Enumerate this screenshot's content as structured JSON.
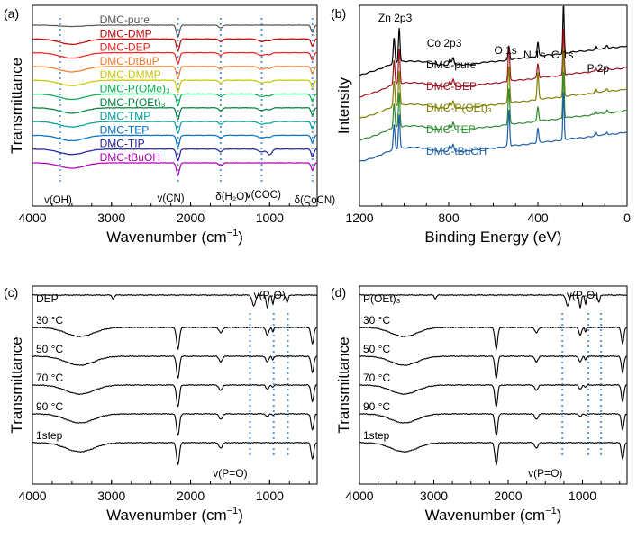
{
  "chart_data": [
    {
      "type": "line",
      "panel_label": "(a)",
      "xlabel": "Wavenumber (cm⁻¹)",
      "ylabel": "Transmittance",
      "xlim": [
        4000,
        400
      ],
      "xticks": [
        "4000",
        "3000",
        "2000",
        "1000"
      ],
      "reference_lines": [
        3650,
        2160,
        1620,
        1100,
        460
      ],
      "annotations": [
        "v(OH)",
        "v(CN)",
        "δ(H₂O)",
        "v(COC)",
        "δ(CoCN)"
      ],
      "series": [
        {
          "name": "DMC-pure",
          "color": "#555555"
        },
        {
          "name": "DMC-DMP",
          "color": "#c00000"
        },
        {
          "name": "DMC-DEP",
          "color": "#e8231f"
        },
        {
          "name": "DMC-DtBuP",
          "color": "#ed7d31"
        },
        {
          "name": "DMC-DMMP",
          "color": "#c8c800"
        },
        {
          "name": "DMC-P(OMe)₃",
          "color": "#00b050"
        },
        {
          "name": "DMC-P(OEt)₃",
          "color": "#00803a"
        },
        {
          "name": "DMC-TMP",
          "color": "#00a09a"
        },
        {
          "name": "DMC-TEP",
          "color": "#0070c0"
        },
        {
          "name": "DMC-TIP",
          "color": "#2020a0"
        },
        {
          "name": "DMC-tBuOH",
          "color": "#b000b0"
        }
      ]
    },
    {
      "type": "line",
      "panel_label": "(b)",
      "xlabel": "Binding Energy (eV)",
      "ylabel": "Intensity",
      "xlim": [
        1200,
        0
      ],
      "xticks": [
        "1200",
        "800",
        "400",
        "0"
      ],
      "annotations": [
        "Zn 2p3",
        "Co 2p3",
        "O 1s",
        "N 1s",
        "C 1s",
        "P 2p"
      ],
      "series": [
        {
          "name": "DMC-pure",
          "color": "#000000"
        },
        {
          "name": "DMC-DEP",
          "color": "#a0141e"
        },
        {
          "name": "DMC-P(OEt)₃",
          "color": "#808000"
        },
        {
          "name": "DMC-TEP",
          "color": "#2e8b2e"
        },
        {
          "name": "DMC-tBuOH",
          "color": "#1f5fa8"
        }
      ]
    },
    {
      "type": "line",
      "panel_label": "(c)",
      "xlabel": "Wavenumber (cm⁻¹)",
      "ylabel": "Transmittance",
      "xlim": [
        4000,
        400
      ],
      "xticks": [
        "4000",
        "3000",
        "2000",
        "1000"
      ],
      "reference_lines": [
        1250,
        950,
        770
      ],
      "annotations": [
        "v(P-O)",
        "v(P=O)"
      ],
      "series": [
        {
          "name": "DEP"
        },
        {
          "name": "30 °C"
        },
        {
          "name": "50 °C"
        },
        {
          "name": "70 °C"
        },
        {
          "name": "90 °C"
        },
        {
          "name": "1step"
        }
      ]
    },
    {
      "type": "line",
      "panel_label": "(d)",
      "xlabel": "Wavenumber (cm⁻¹)",
      "ylabel": "Transmittance",
      "xlim": [
        4000,
        400
      ],
      "xticks": [
        "4000",
        "3000",
        "2000",
        "1000"
      ],
      "reference_lines": [
        1270,
        920,
        750
      ],
      "annotations": [
        "v(P-O)",
        "v(P=O)"
      ],
      "series": [
        {
          "name": "P(OEt)₃"
        },
        {
          "name": "30 °C"
        },
        {
          "name": "50 °C"
        },
        {
          "name": "70 °C"
        },
        {
          "name": "90 °C"
        },
        {
          "name": "1step"
        }
      ]
    }
  ]
}
